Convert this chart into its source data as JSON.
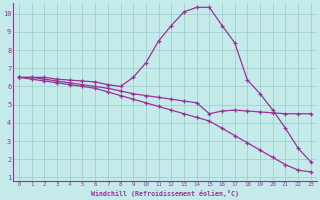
{
  "xlabel": "Windchill (Refroidissement éolien,°C)",
  "xlim": [
    -0.5,
    23.5
  ],
  "ylim": [
    0.8,
    10.6
  ],
  "xticks": [
    0,
    1,
    2,
    3,
    4,
    5,
    6,
    7,
    8,
    9,
    10,
    11,
    12,
    13,
    14,
    15,
    16,
    17,
    18,
    19,
    20,
    21,
    22,
    23
  ],
  "yticks": [
    1,
    2,
    3,
    4,
    5,
    6,
    7,
    8,
    9,
    10
  ],
  "bg_color": "#c5eaea",
  "line_color": "#993399",
  "grid_color": "#99cccc",
  "curve1_x": [
    0,
    1,
    2,
    3,
    4,
    5,
    6,
    7,
    8,
    9,
    10,
    11,
    12,
    13,
    14,
    15,
    16,
    17,
    18,
    19,
    20,
    21,
    22,
    23
  ],
  "curve1_y": [
    6.5,
    6.5,
    6.5,
    6.4,
    6.35,
    6.3,
    6.25,
    6.1,
    6.0,
    6.5,
    7.3,
    8.5,
    9.35,
    10.1,
    10.35,
    10.35,
    9.35,
    8.4,
    6.35,
    5.6,
    4.7,
    3.7,
    2.6,
    1.85
  ],
  "curve2_x": [
    0,
    1,
    2,
    3,
    4,
    5,
    6,
    7,
    8,
    9,
    10,
    11,
    12,
    13,
    14,
    15,
    16,
    17,
    18,
    19,
    20,
    21,
    22,
    23
  ],
  "curve2_y": [
    6.5,
    6.5,
    6.4,
    6.3,
    6.2,
    6.1,
    6.0,
    5.9,
    5.75,
    5.6,
    5.5,
    5.4,
    5.3,
    5.2,
    5.1,
    4.5,
    4.65,
    4.7,
    4.65,
    4.6,
    4.55,
    4.5,
    4.5,
    4.5
  ],
  "curve3_x": [
    0,
    1,
    2,
    3,
    4,
    5,
    6,
    7,
    8,
    9,
    10,
    11,
    12,
    13,
    14,
    15,
    16,
    17,
    18,
    19,
    20,
    21,
    22,
    23
  ],
  "curve3_y": [
    6.5,
    6.4,
    6.3,
    6.2,
    6.1,
    6.0,
    5.9,
    5.7,
    5.5,
    5.3,
    5.1,
    4.9,
    4.7,
    4.5,
    4.3,
    4.1,
    3.7,
    3.3,
    2.9,
    2.5,
    2.1,
    1.7,
    1.4,
    1.3
  ]
}
